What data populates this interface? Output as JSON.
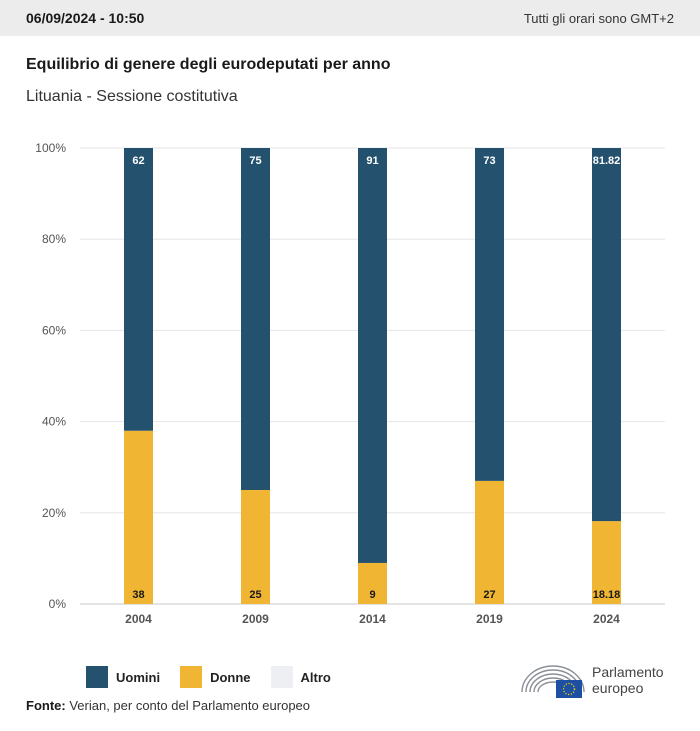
{
  "header": {
    "datetime": "06/09/2024 - 10:50",
    "timezone_note": "Tutti gli orari sono GMT+2"
  },
  "title": "Equilibrio di genere degli eurodeputati per anno",
  "subtitle": "Lituania - Sessione costitutiva",
  "legend": [
    {
      "label": "Uomini",
      "color": "#24526e"
    },
    {
      "label": "Donne",
      "color": "#efb533"
    },
    {
      "label": "Altro",
      "color": "#eeeff3"
    }
  ],
  "source": {
    "prefix": "Fonte:",
    "text": "Verian, per conto del Parlamento europeo"
  },
  "logo": {
    "line1": "Parlamento",
    "line2": "europeo",
    "icon": "european-parliament-hemicycle-icon"
  },
  "chart_data": {
    "type": "bar",
    "stacked": true,
    "categories": [
      "2004",
      "2009",
      "2014",
      "2019",
      "2024"
    ],
    "series": [
      {
        "name": "Donne",
        "color": "#efb533",
        "values": [
          38,
          25,
          9,
          27,
          18.18
        ],
        "labels": [
          "38",
          "25",
          "9",
          "27",
          "18.18"
        ]
      },
      {
        "name": "Uomini",
        "color": "#24526e",
        "values": [
          62,
          75,
          91,
          73,
          81.82
        ],
        "labels": [
          "62",
          "75",
          "91",
          "73",
          "81.82"
        ]
      },
      {
        "name": "Altro",
        "color": "#eeeff3",
        "values": [
          0,
          0,
          0,
          0,
          0
        ],
        "labels": [
          "",
          "",
          "",
          "",
          ""
        ]
      }
    ],
    "ylim": [
      0,
      100
    ],
    "yticks": [
      "0%",
      "20%",
      "40%",
      "60%",
      "80%",
      "100%"
    ],
    "grid": true,
    "legend_position": "bottom-left"
  }
}
